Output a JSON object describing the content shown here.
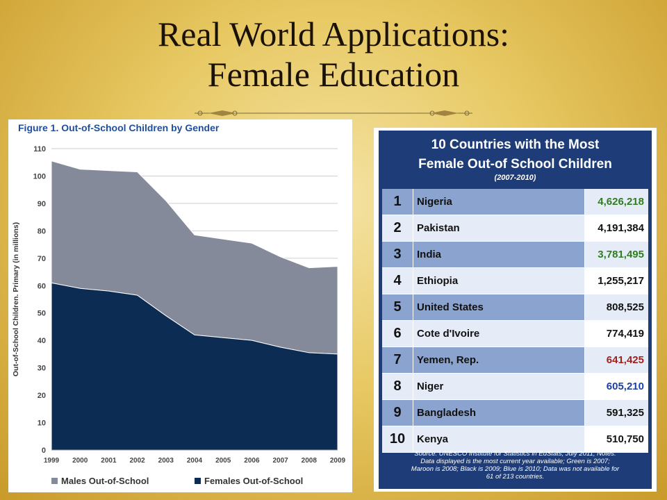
{
  "slide": {
    "title_line1": "Real World Applications:",
    "title_line2": "Female Education"
  },
  "chart_data": {
    "type": "area",
    "title": "Figure 1.  Out-of-School Children by Gender",
    "ylabel": "Out-of-School Children. Primary (in millions)",
    "xlabel": "",
    "x": [
      "1999",
      "2000",
      "2001",
      "2002",
      "2003",
      "2004",
      "2005",
      "2006",
      "2007",
      "2008",
      "2009"
    ],
    "ylim": [
      0,
      110
    ],
    "yticks": [
      0,
      10,
      20,
      30,
      40,
      50,
      60,
      70,
      80,
      90,
      100,
      110
    ],
    "stacked": true,
    "grid": true,
    "legend_position": "bottom",
    "series": [
      {
        "name": "Females Out-of-School",
        "color": "#0d2c54",
        "values": [
          61,
          59,
          58,
          56.5,
          49,
          42,
          41,
          40,
          37.5,
          35.5,
          35
        ]
      },
      {
        "name": "Males Out-of-School",
        "color": "#858a9b",
        "values": [
          44.5,
          43.5,
          44,
          45,
          42,
          36.5,
          36,
          35.5,
          33,
          31,
          32
        ]
      }
    ],
    "totals": [
      105.5,
      102.5,
      102,
      101.5,
      91,
      78.5,
      77,
      75.5,
      70.5,
      66.5,
      67
    ]
  },
  "table": {
    "title_line1": "10 Countries with the Most",
    "title_line2": "Female Out-of School Children",
    "title_line3": "(2007-2010)",
    "rows": [
      {
        "rank": "1",
        "country": "Nigeria",
        "value": "4,626,218",
        "color": "#2e7d1f"
      },
      {
        "rank": "2",
        "country": "Pakistan",
        "value": "4,191,384",
        "color": "#111111"
      },
      {
        "rank": "3",
        "country": "India",
        "value": "3,781,495",
        "color": "#2e7d1f"
      },
      {
        "rank": "4",
        "country": "Ethiopia",
        "value": "1,255,217",
        "color": "#111111"
      },
      {
        "rank": "5",
        "country": "United States",
        "value": "808,525",
        "color": "#111111"
      },
      {
        "rank": "6",
        "country": "Cote d'Ivoire",
        "value": "774,419",
        "color": "#111111"
      },
      {
        "rank": "7",
        "country": "Yemen, Rep.",
        "value": "641,425",
        "color": "#a0201c"
      },
      {
        "rank": "8",
        "country": "Niger",
        "value": "605,210",
        "color": "#1c3fa8"
      },
      {
        "rank": "9",
        "country": "Bangladesh",
        "value": "591,325",
        "color": "#111111"
      },
      {
        "rank": "10",
        "country": "Kenya",
        "value": "510,750",
        "color": "#111111"
      }
    ],
    "source_line1": "Source:  UNESCO Institute for Statistics in EdStats, July 2011; Notes:",
    "source_line2": "Data displayed is the most current year available; Green is 2007;",
    "source_line3": "Maroon is 2008; Black is 2009; Blue is 2010; Data was not available for",
    "source_line4": "61 of 213 countries."
  }
}
